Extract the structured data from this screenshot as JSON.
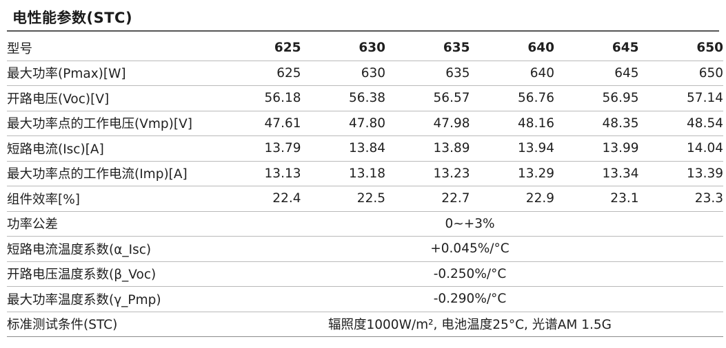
{
  "title": "电性能参数(STC)",
  "header": {
    "label": "型号",
    "models": [
      "625",
      "630",
      "635",
      "640",
      "645",
      "650"
    ]
  },
  "rows": [
    {
      "label": "最大功率(Pmax)[W]",
      "values": [
        "625",
        "630",
        "635",
        "640",
        "645",
        "650"
      ]
    },
    {
      "label": "开路电压(Voc)[V]",
      "values": [
        "56.18",
        "56.38",
        "56.57",
        "56.76",
        "56.95",
        "57.14"
      ]
    },
    {
      "label": "最大功率点的工作电压(Vmp)[V]",
      "values": [
        "47.61",
        "47.80",
        "47.98",
        "48.16",
        "48.35",
        "48.54"
      ]
    },
    {
      "label": "短路电流(Isc)[A]",
      "values": [
        "13.79",
        "13.84",
        "13.89",
        "13.94",
        "13.99",
        "14.04"
      ]
    },
    {
      "label": "最大功率点的工作电流(Imp)[A]",
      "values": [
        "13.13",
        "13.18",
        "13.23",
        "13.29",
        "13.34",
        "13.39"
      ]
    },
    {
      "label": "组件效率[%]",
      "values": [
        "22.4",
        "22.5",
        "22.7",
        "22.9",
        "23.1",
        "23.3"
      ]
    }
  ],
  "span_rows": [
    {
      "label": "功率公差",
      "value": "0~+3%"
    },
    {
      "label": "短路电流温度系数(α_Isc)",
      "value": "+0.045%/°C"
    },
    {
      "label": "开路电压温度系数(β_Voc)",
      "value": "-0.250%/°C"
    },
    {
      "label": "最大功率温度系数(γ_Pmp)",
      "value": "-0.290%/°C"
    },
    {
      "label": "标准测试条件(STC)",
      "value": "辐照度1000W/m², 电池温度25°C, 光谱AM 1.5G"
    }
  ]
}
